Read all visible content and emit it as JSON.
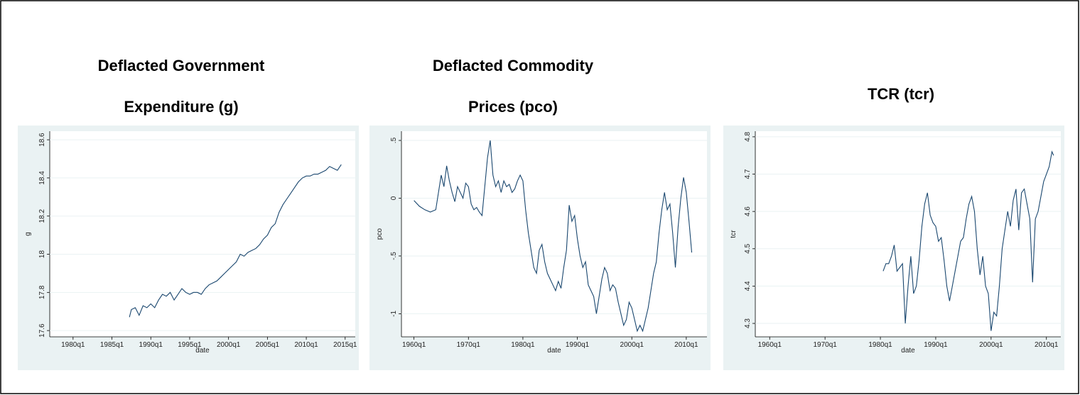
{
  "chart_data": [
    {
      "type": "line",
      "title": [
        "Deflacted Government",
        "Expenditure (g)"
      ],
      "xlabel": "date",
      "ylabel": "g",
      "color": "#1a476f",
      "grid": true,
      "xlim": [
        1977,
        2016.3
      ],
      "ylim": [
        17.567,
        18.645
      ],
      "xticks": [
        {
          "value": 1980,
          "label": "1980q1"
        },
        {
          "value": 1985,
          "label": "1985q1"
        },
        {
          "value": 1990,
          "label": "1990q1"
        },
        {
          "value": 1995,
          "label": "1995q1"
        },
        {
          "value": 2000,
          "label": "2000q1"
        },
        {
          "value": 2005,
          "label": "2005q1"
        },
        {
          "value": 2010,
          "label": "2010q1"
        },
        {
          "value": 2015,
          "label": "2015q1"
        }
      ],
      "yticks": [
        17.6,
        17.8,
        18,
        18.2,
        18.4,
        18.6
      ],
      "x": [
        1987.25,
        1987.5,
        1988,
        1988.5,
        1989,
        1989.5,
        1990,
        1990.5,
        1991,
        1991.5,
        1992,
        1992.5,
        1993,
        1993.5,
        1994,
        1994.5,
        1995,
        1995.5,
        1996,
        1996.5,
        1997,
        1997.5,
        1998,
        1998.5,
        1999,
        1999.5,
        2000,
        2000.5,
        2001,
        2001.5,
        2002,
        2002.5,
        2003,
        2003.5,
        2004,
        2004.5,
        2005,
        2005.5,
        2006,
        2006.5,
        2007,
        2007.5,
        2008,
        2008.5,
        2009,
        2009.5,
        2010,
        2010.5,
        2011,
        2011.5,
        2012,
        2012.5,
        2013,
        2013.5,
        2014,
        2014.5
      ],
      "values": [
        17.67,
        17.71,
        17.72,
        17.68,
        17.73,
        17.72,
        17.74,
        17.72,
        17.76,
        17.79,
        17.78,
        17.8,
        17.76,
        17.79,
        17.82,
        17.8,
        17.79,
        17.8,
        17.8,
        17.79,
        17.82,
        17.84,
        17.85,
        17.86,
        17.88,
        17.9,
        17.92,
        17.94,
        17.96,
        18.0,
        17.99,
        18.01,
        18.02,
        18.03,
        18.05,
        18.08,
        18.1,
        18.14,
        18.16,
        18.22,
        18.26,
        18.29,
        18.32,
        18.35,
        18.38,
        18.4,
        18.41,
        18.41,
        18.42,
        18.42,
        18.43,
        18.44,
        18.46,
        18.45,
        18.44,
        18.47
      ]
    },
    {
      "type": "line",
      "title": [
        "Deflacted Commodity",
        "Prices (pco)"
      ],
      "xlabel": "date",
      "ylabel": "pco",
      "color": "#1a476f",
      "grid": true,
      "xlim": [
        1957.7,
        2013.8
      ],
      "ylim": [
        -1.2,
        0.58
      ],
      "xticks": [
        {
          "value": 1960,
          "label": "1960q1"
        },
        {
          "value": 1970,
          "label": "1970q1"
        },
        {
          "value": 1980,
          "label": "1980q1"
        },
        {
          "value": 1990,
          "label": "1990q1"
        },
        {
          "value": 2000,
          "label": "2000q1"
        },
        {
          "value": 2010,
          "label": "2010q1"
        }
      ],
      "yticks": [
        {
          "value": -1,
          "label": "-1"
        },
        {
          "value": -0.5,
          "label": "-.5"
        },
        0,
        {
          "value": 0.5,
          "label": ".5"
        }
      ],
      "x": [
        1960,
        1961,
        1962,
        1963,
        1964,
        1965,
        1965.5,
        1966,
        1966.5,
        1967,
        1967.5,
        1968,
        1969,
        1969.5,
        1970,
        1970.5,
        1971,
        1971.5,
        1972,
        1972.5,
        1973,
        1973.5,
        1974,
        1974.5,
        1975,
        1975.5,
        1976,
        1976.5,
        1977,
        1977.5,
        1978,
        1978.5,
        1979,
        1979.5,
        1980,
        1980.5,
        1981,
        1981.5,
        1982,
        1982.5,
        1983,
        1983.5,
        1984,
        1984.5,
        1985,
        1985.5,
        1986,
        1986.5,
        1987,
        1987.5,
        1988,
        1988.5,
        1989,
        1989.5,
        1990,
        1990.5,
        1991,
        1991.5,
        1992,
        1992.5,
        1993,
        1993.5,
        1994,
        1994.5,
        1995,
        1995.5,
        1996,
        1996.5,
        1997,
        1997.5,
        1998,
        1998.5,
        1999,
        1999.5,
        2000,
        2000.5,
        2001,
        2001.5,
        2002,
        2002.5,
        2003,
        2003.5,
        2004,
        2004.5,
        2005,
        2005.5,
        2006,
        2006.5,
        2007,
        2007.5,
        2008,
        2008.5,
        2009,
        2009.5,
        2010,
        2010.5,
        2011
      ],
      "values": [
        -0.02,
        -0.07,
        -0.1,
        -0.12,
        -0.1,
        0.2,
        0.1,
        0.28,
        0.15,
        0.05,
        -0.03,
        0.1,
        0.0,
        0.13,
        0.1,
        -0.05,
        -0.1,
        -0.08,
        -0.12,
        -0.15,
        0.1,
        0.35,
        0.5,
        0.2,
        0.1,
        0.15,
        0.05,
        0.15,
        0.1,
        0.12,
        0.05,
        0.08,
        0.15,
        0.2,
        0.15,
        -0.1,
        -0.3,
        -0.45,
        -0.6,
        -0.65,
        -0.45,
        -0.4,
        -0.55,
        -0.65,
        -0.7,
        -0.75,
        -0.8,
        -0.72,
        -0.78,
        -0.6,
        -0.45,
        -0.06,
        -0.2,
        -0.15,
        -0.35,
        -0.5,
        -0.6,
        -0.55,
        -0.75,
        -0.8,
        -0.85,
        -1.0,
        -0.85,
        -0.7,
        -0.6,
        -0.65,
        -0.8,
        -0.75,
        -0.78,
        -0.9,
        -1.0,
        -1.1,
        -1.05,
        -0.9,
        -0.95,
        -1.05,
        -1.15,
        -1.1,
        -1.15,
        -1.05,
        -0.95,
        -0.8,
        -0.65,
        -0.55,
        -0.3,
        -0.1,
        0.05,
        -0.1,
        -0.05,
        -0.3,
        -0.6,
        -0.25,
        0.0,
        0.18,
        0.05,
        -0.2,
        -0.47
      ]
    },
    {
      "type": "line",
      "title": [
        "TCR (tcr)"
      ],
      "xlabel": "date",
      "ylabel": "tcr",
      "color": "#1a476f",
      "grid": true,
      "xlim": [
        1957.4,
        2012.6
      ],
      "ylim": [
        4.264,
        4.815
      ],
      "xticks": [
        {
          "value": 1960,
          "label": "1960q1"
        },
        {
          "value": 1970,
          "label": "1970q1"
        },
        {
          "value": 1980,
          "label": "1980q1"
        },
        {
          "value": 1990,
          "label": "1990q1"
        },
        {
          "value": 2000,
          "label": "2000q1"
        },
        {
          "value": 2010,
          "label": "2010q1"
        }
      ],
      "yticks": [
        4.3,
        4.4,
        4.5,
        4.6,
        4.7,
        4.8
      ],
      "x": [
        1980.5,
        1981,
        1981.5,
        1982,
        1982.5,
        1983,
        1983.5,
        1984,
        1984.5,
        1985,
        1985.5,
        1986,
        1986.5,
        1987,
        1987.5,
        1988,
        1988.5,
        1989,
        1989.5,
        1990,
        1990.5,
        1991,
        1991.5,
        1992,
        1992.5,
        1993,
        1993.5,
        1994,
        1994.5,
        1995,
        1995.5,
        1996,
        1996.5,
        1997,
        1997.5,
        1998,
        1998.5,
        1999,
        1999.5,
        2000,
        2000.5,
        2001,
        2001.5,
        2002,
        2002.5,
        2003,
        2003.5,
        2004,
        2004.5,
        2005,
        2005.5,
        2006,
        2006.5,
        2007,
        2007.5,
        2008,
        2008.5,
        2009,
        2009.5,
        2010,
        2010.5,
        2011,
        2011.3
      ],
      "values": [
        4.44,
        4.46,
        4.46,
        4.48,
        4.51,
        4.44,
        4.45,
        4.46,
        4.3,
        4.4,
        4.48,
        4.38,
        4.4,
        4.47,
        4.56,
        4.62,
        4.65,
        4.59,
        4.57,
        4.56,
        4.52,
        4.53,
        4.47,
        4.4,
        4.36,
        4.4,
        4.44,
        4.48,
        4.52,
        4.53,
        4.58,
        4.62,
        4.64,
        4.6,
        4.5,
        4.43,
        4.48,
        4.4,
        4.38,
        4.28,
        4.33,
        4.32,
        4.4,
        4.5,
        4.55,
        4.6,
        4.56,
        4.63,
        4.66,
        4.55,
        4.65,
        4.66,
        4.62,
        4.58,
        4.41,
        4.58,
        4.6,
        4.64,
        4.68,
        4.7,
        4.72,
        4.76,
        4.75
      ]
    }
  ]
}
